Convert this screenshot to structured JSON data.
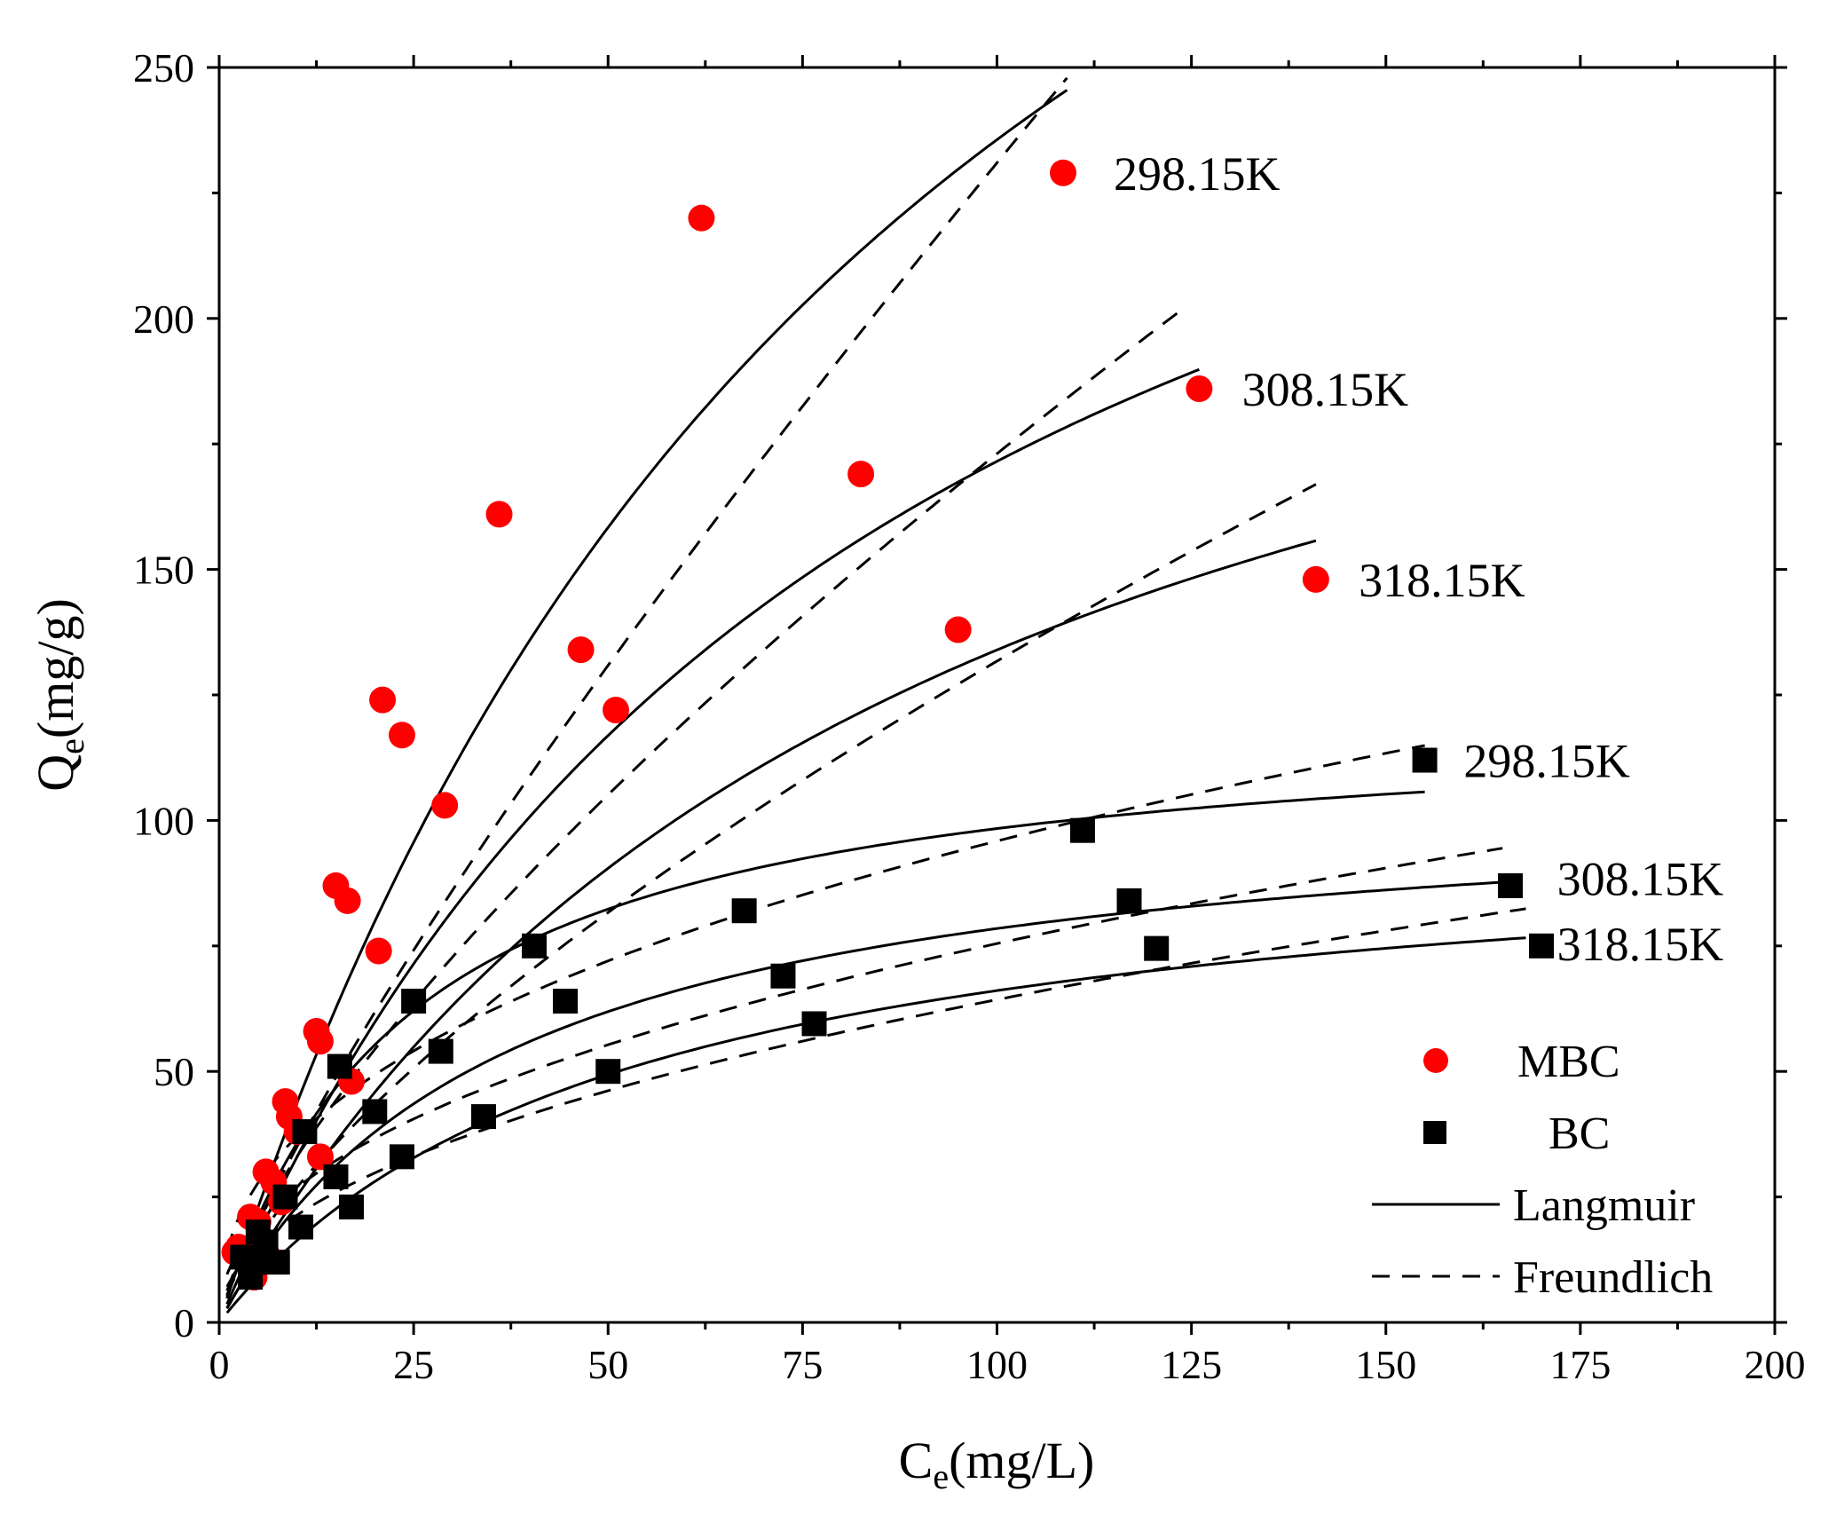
{
  "chart_data": {
    "type": "scatter",
    "xlabel": "C",
    "xlabel_sub": "e",
    "xlabel_unit": "(mg/L)",
    "ylabel": "Q",
    "ylabel_sub": "e",
    "ylabel_unit": "(mg/g)",
    "xlim": [
      0,
      200
    ],
    "ylim": [
      0,
      250
    ],
    "xticks": [
      0,
      25,
      50,
      75,
      100,
      125,
      150,
      175,
      200
    ],
    "yticks": [
      0,
      50,
      100,
      150,
      200,
      250
    ],
    "grid": false,
    "legend": {
      "position": "bottom-right",
      "entries": [
        {
          "label": "MBC",
          "kind": "red-circle"
        },
        {
          "label": "BC",
          "kind": "black-square"
        },
        {
          "label": "Langmuir",
          "kind": "solid-line"
        },
        {
          "label": "Freundlich",
          "kind": "dashed-line"
        }
      ]
    },
    "series": [
      {
        "name": "MBC 298.15K",
        "material": "MBC",
        "temperature": "298.15K",
        "points": [
          [
            2.5,
            15
          ],
          [
            4,
            21
          ],
          [
            6,
            30
          ],
          [
            8.5,
            44
          ],
          [
            13,
            56
          ],
          [
            15,
            87
          ],
          [
            16.5,
            84
          ],
          [
            20.5,
            74
          ],
          [
            21,
            124
          ],
          [
            23.5,
            117
          ],
          [
            29,
            103
          ],
          [
            36,
            161
          ],
          [
            62,
            220
          ],
          [
            108.5,
            229
          ]
        ],
        "langmuir": {
          "qm": 460,
          "kl": 0.0105,
          "xmax": 109
        },
        "freundlich": {
          "kf": 5.3,
          "n": 1.22,
          "xmax": 109
        }
      },
      {
        "name": "MBC 308.15K",
        "material": "MBC",
        "temperature": "308.15K",
        "points": [
          [
            3,
            13
          ],
          [
            5,
            20
          ],
          [
            7,
            28
          ],
          [
            9,
            41
          ],
          [
            12.5,
            58
          ],
          [
            17,
            48
          ],
          [
            46.5,
            134
          ],
          [
            51,
            122
          ],
          [
            82.5,
            169
          ],
          [
            126,
            186
          ]
        ],
        "langmuir": {
          "qm": 322,
          "kl": 0.0114,
          "xmax": 126
        },
        "freundlich": {
          "kf": 6.3,
          "n": 1.39,
          "xmax": 124
        }
      },
      {
        "name": "MBC 318.15K",
        "material": "MBC",
        "temperature": "318.15K",
        "points": [
          [
            2,
            14
          ],
          [
            4.5,
            9
          ],
          [
            6,
            14
          ],
          [
            8,
            24
          ],
          [
            10,
            38
          ],
          [
            13,
            33
          ],
          [
            95,
            138
          ],
          [
            141,
            148
          ]
        ],
        "langmuir": {
          "qm": 258,
          "kl": 0.0108,
          "xmax": 141
        },
        "freundlich": {
          "kf": 5.5,
          "n": 1.45,
          "xmax": 141
        }
      },
      {
        "name": "BC 298.15K",
        "material": "BC",
        "temperature": "298.15K",
        "points": [
          [
            4.5,
            12
          ],
          [
            5,
            18
          ],
          [
            11,
            38
          ],
          [
            15.5,
            51
          ],
          [
            25,
            64
          ],
          [
            40.5,
            75
          ],
          [
            67.5,
            82
          ],
          [
            111,
            98
          ],
          [
            155,
            112
          ]
        ],
        "langmuir": {
          "qm": 122.2,
          "kl": 0.0413,
          "xmax": 155
        },
        "freundlich": {
          "kf": 14.3,
          "n": 2.42,
          "xmax": 155
        }
      },
      {
        "name": "BC 308.15K",
        "material": "BC",
        "temperature": "308.15K",
        "points": [
          [
            3,
            13
          ],
          [
            6,
            16
          ],
          [
            8.5,
            25
          ],
          [
            15,
            29
          ],
          [
            20,
            42
          ],
          [
            28.5,
            54
          ],
          [
            44.5,
            64
          ],
          [
            72.5,
            69
          ],
          [
            117,
            84
          ],
          [
            166,
            87
          ]
        ],
        "langmuir": {
          "qm": 107.1,
          "kl": 0.0274,
          "xmax": 165
        },
        "freundlich": {
          "kf": 9.57,
          "n": 2.23,
          "xmax": 165
        }
      },
      {
        "name": "BC 318.15K",
        "material": "BC",
        "temperature": "318.15K",
        "points": [
          [
            4,
            9
          ],
          [
            7.5,
            12
          ],
          [
            10.5,
            19
          ],
          [
            17,
            23
          ],
          [
            23.5,
            33
          ],
          [
            34,
            41
          ],
          [
            50,
            50
          ],
          [
            76.5,
            59.5
          ],
          [
            120.5,
            74.5
          ],
          [
            170,
            75
          ]
        ],
        "langmuir": {
          "qm": 100,
          "kl": 0.0195,
          "xmax": 168
        },
        "freundlich": {
          "kf": 7.1,
          "n": 2.09,
          "xmax": 168
        }
      }
    ],
    "annotations": [
      {
        "text": "298.15K",
        "x": 115,
        "y": 229,
        "material": "MBC"
      },
      {
        "text": "308.15K",
        "x": 131.5,
        "y": 186,
        "material": "MBC"
      },
      {
        "text": "318.15K",
        "x": 146.5,
        "y": 148,
        "material": "MBC"
      },
      {
        "text": "298.15K",
        "x": 160,
        "y": 112,
        "material": "BC"
      },
      {
        "text": "308.15K",
        "x": 172,
        "y": 88.5,
        "material": "BC"
      },
      {
        "text": "318.15K",
        "x": 172,
        "y": 75.5,
        "material": "BC"
      }
    ]
  }
}
